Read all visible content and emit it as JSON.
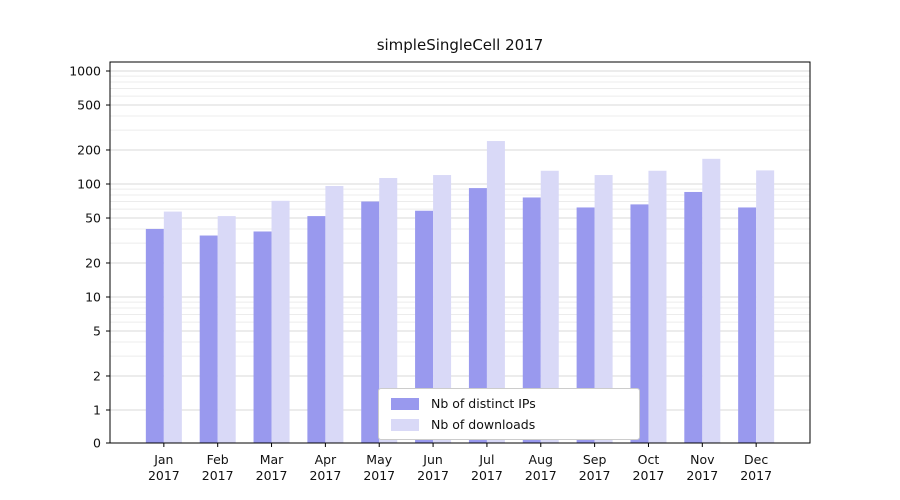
{
  "chart_data": {
    "type": "bar",
    "title": "simpleSingleCell 2017",
    "categories": [
      "Jan",
      "Feb",
      "Mar",
      "Apr",
      "May",
      "Jun",
      "Jul",
      "Aug",
      "Sep",
      "Oct",
      "Nov",
      "Dec"
    ],
    "category_year": "2017",
    "series": [
      {
        "name": "Nb of distinct IPs",
        "color": "#9999ee",
        "values": [
          40,
          35,
          38,
          52,
          70,
          58,
          92,
          76,
          62,
          66,
          85,
          62
        ]
      },
      {
        "name": "Nb of downloads",
        "color": "#d9d9f7",
        "values": [
          57,
          52,
          71,
          96,
          113,
          120,
          240,
          131,
          120,
          131,
          167,
          132
        ]
      }
    ],
    "yscale": "symlog",
    "yticks": [
      0,
      1,
      2,
      5,
      10,
      20,
      50,
      100,
      200,
      500,
      1000
    ],
    "ylim": [
      0,
      1000
    ],
    "grid": true,
    "legend_position": "lower center",
    "colors": {
      "major_gridline": "#d9d9d9",
      "minor_gridline": "#ececec",
      "axis_frame": "#000000",
      "text": "#111111"
    }
  }
}
